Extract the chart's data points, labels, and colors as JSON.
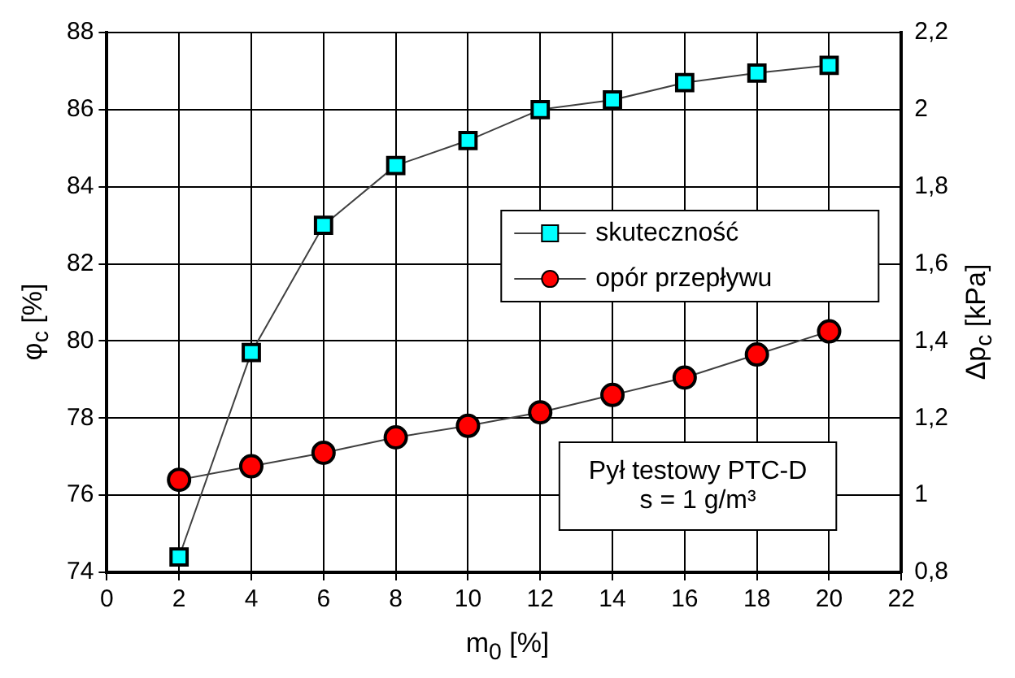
{
  "chart_data": {
    "type": "line",
    "xlabel": "m$_{0}$ [%]",
    "ylabel": "φ$_{c}$ [%]",
    "y2label": "Δp$_{c}$ [kPa]",
    "x": [
      2,
      4,
      6,
      8,
      10,
      12,
      14,
      16,
      18,
      20
    ],
    "series": [
      {
        "name": "skuteczność",
        "color": "#00ffff",
        "marker": "square",
        "values": [
          74.4,
          79.7,
          83.0,
          84.55,
          85.2,
          86.0,
          86.25,
          86.7,
          86.95,
          87.15
        ]
      },
      {
        "name": "opór przepływu",
        "color": "#ff0000",
        "marker": "circle",
        "axis": "y2",
        "values": [
          1.04,
          1.075,
          1.11,
          1.15,
          1.18,
          1.215,
          1.26,
          1.305,
          1.365,
          1.425
        ]
      }
    ],
    "xlim": [
      0,
      22
    ],
    "xticks": [
      0,
      2,
      4,
      6,
      8,
      10,
      12,
      14,
      16,
      18,
      20,
      22
    ],
    "ylim": [
      74,
      88
    ],
    "yticks": [
      74,
      76,
      78,
      80,
      82,
      84,
      86,
      88
    ],
    "y2lim": [
      0.8,
      2.2
    ],
    "y2ticks": [
      {
        "value": 0.8,
        "label": "0,8"
      },
      {
        "value": 1,
        "label": "1"
      },
      {
        "value": 1.2,
        "label": "1,2"
      },
      {
        "value": 1.4,
        "label": "1,4"
      },
      {
        "value": 1.6,
        "label": "1,6"
      },
      {
        "value": 1.8,
        "label": "1,8"
      },
      {
        "value": 2,
        "label": "2"
      },
      {
        "value": 2.2,
        "label": "2,2"
      }
    ],
    "annotations": [
      "Pył testowy PTC-D",
      "s = 1 g/m³"
    ],
    "grid": true,
    "legend": "right",
    "line_style": "solid"
  }
}
